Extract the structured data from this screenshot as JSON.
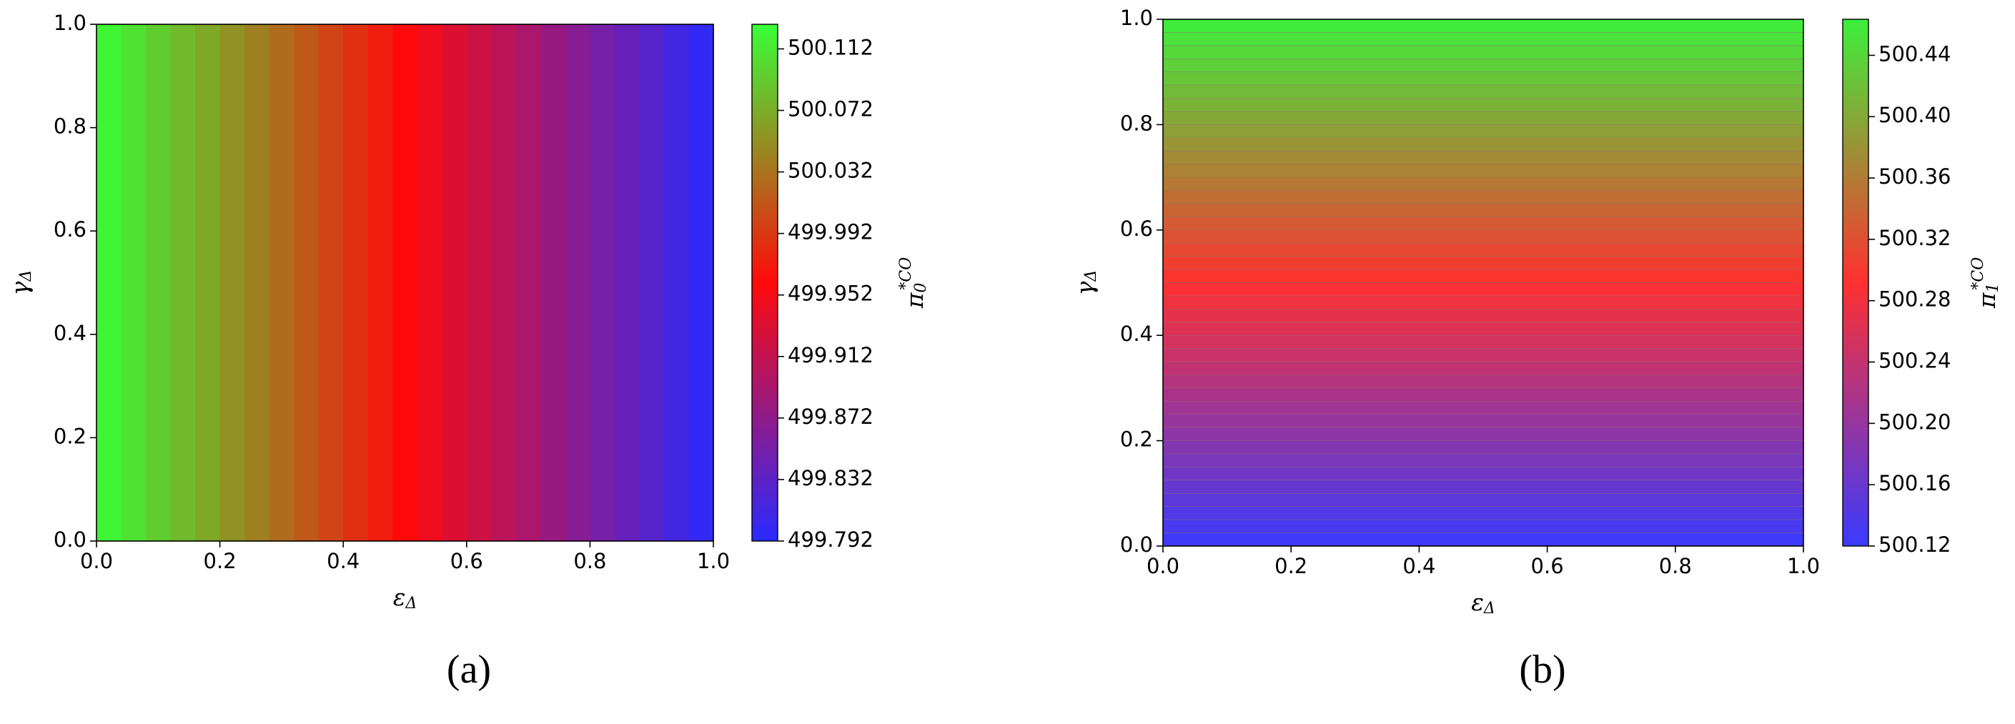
{
  "chart_data": [
    {
      "type": "heatmap",
      "xlabel": {
        "symbol": "ε",
        "subscript": "Δ"
      },
      "ylabel": {
        "symbol": "γ",
        "subscript": "Δ"
      },
      "colorbar_label": {
        "symbol": "π",
        "subscript": "0",
        "superscript": "*CO"
      },
      "caption": "(a)",
      "xlim": [
        0,
        1
      ],
      "ylim": [
        0,
        1
      ],
      "xticks": [
        {
          "value": 0,
          "label": "0.0"
        },
        {
          "value": 0.2,
          "label": "0.2"
        },
        {
          "value": 0.4,
          "label": "0.4"
        },
        {
          "value": 0.6,
          "label": "0.6"
        },
        {
          "value": 0.8,
          "label": "0.8"
        },
        {
          "value": 1,
          "label": "1.0"
        }
      ],
      "yticks": [
        {
          "value": 0,
          "label": "0.0"
        },
        {
          "value": 0.2,
          "label": "0.2"
        },
        {
          "value": 0.4,
          "label": "0.4"
        },
        {
          "value": 0.6,
          "label": "0.6"
        },
        {
          "value": 0.8,
          "label": "0.8"
        },
        {
          "value": 1,
          "label": "1.0"
        }
      ],
      "clim": [
        499.792,
        500.128
      ],
      "cticks": [
        499.792,
        499.832,
        499.872,
        499.912,
        499.952,
        499.992,
        500.032,
        500.072,
        500.112
      ],
      "colormap": [
        "#2a2aff",
        "#ff0a0a",
        "#38ff38"
      ],
      "x": [
        0.02,
        0.06,
        0.1,
        0.14,
        0.18,
        0.22,
        0.26,
        0.3,
        0.34,
        0.38,
        0.42,
        0.46,
        0.5,
        0.54,
        0.58,
        0.62,
        0.66,
        0.7,
        0.74,
        0.78,
        0.82,
        0.86,
        0.9,
        0.94,
        0.98
      ],
      "y": [
        0.5
      ],
      "z": [
        [
          500.121,
          500.108,
          500.094,
          500.081,
          500.068,
          500.054,
          500.041,
          500.027,
          500.014,
          500,
          499.987,
          499.973,
          499.96,
          499.947,
          499.933,
          499.92,
          499.906,
          499.893,
          499.879,
          499.866,
          499.852,
          499.839,
          499.826,
          499.812,
          499.799
        ]
      ]
    },
    {
      "type": "heatmap",
      "xlabel": {
        "symbol": "ε",
        "subscript": "Δ"
      },
      "ylabel": {
        "symbol": "γ",
        "subscript": "Δ"
      },
      "colorbar_label": {
        "symbol": "π",
        "subscript": "1",
        "superscript": "*CO"
      },
      "caption": "(b)",
      "xlim": [
        0,
        1
      ],
      "ylim": [
        0,
        1
      ],
      "xticks": [
        {
          "value": 0,
          "label": "0.0"
        },
        {
          "value": 0.2,
          "label": "0.2"
        },
        {
          "value": 0.4,
          "label": "0.4"
        },
        {
          "value": 0.6,
          "label": "0.6"
        },
        {
          "value": 0.8,
          "label": "0.8"
        },
        {
          "value": 1,
          "label": "1.0"
        }
      ],
      "yticks": [
        {
          "value": 0,
          "label": "0.0"
        },
        {
          "value": 0.2,
          "label": "0.2"
        },
        {
          "value": 0.4,
          "label": "0.4"
        },
        {
          "value": 0.6,
          "label": "0.6"
        },
        {
          "value": 0.8,
          "label": "0.8"
        },
        {
          "value": 1,
          "label": "1.0"
        }
      ],
      "clim": [
        500.12,
        500.4635
      ],
      "cticks": [
        500.12,
        500.16,
        {
          "value": 500.2,
          "label": "500.20"
        },
        500.24,
        500.28,
        500.32,
        500.36,
        {
          "value": 500.4,
          "label": "500.40"
        },
        500.44
      ],
      "colormap": [
        "#3a3aff",
        "#ff3030",
        "#3cf03c"
      ],
      "cell_edge_color": "#8a6a6a",
      "x": [
        0.5
      ],
      "y": [
        0.0125,
        0.0375,
        0.0625,
        0.0875,
        0.1125,
        0.1375,
        0.1625,
        0.1875,
        0.2125,
        0.2375,
        0.2625,
        0.2875,
        0.3125,
        0.3375,
        0.3625,
        0.3875,
        0.4125,
        0.4375,
        0.4625,
        0.4875,
        0.5125,
        0.5375,
        0.5625,
        0.5875,
        0.6125,
        0.6375,
        0.6625,
        0.6875,
        0.7125,
        0.7375,
        0.7625,
        0.7875,
        0.8125,
        0.8375,
        0.8625,
        0.8875,
        0.9125,
        0.9375,
        0.9625,
        0.9875
      ],
      "z": [
        [
          500.124
        ],
        [
          500.133
        ],
        [
          500.141
        ],
        [
          500.15
        ],
        [
          500.159
        ],
        [
          500.167
        ],
        [
          500.176
        ],
        [
          500.184
        ],
        [
          500.193
        ],
        [
          500.202
        ],
        [
          500.21
        ],
        [
          500.219
        ],
        [
          500.227
        ],
        [
          500.236
        ],
        [
          500.245
        ],
        [
          500.253
        ],
        [
          500.262
        ],
        [
          500.27
        ],
        [
          500.279
        ],
        [
          500.287
        ],
        [
          500.296
        ],
        [
          500.305
        ],
        [
          500.313
        ],
        [
          500.322
        ],
        [
          500.33
        ],
        [
          500.339
        ],
        [
          500.348
        ],
        [
          500.356
        ],
        [
          500.365
        ],
        [
          500.373
        ],
        [
          500.382
        ],
        [
          500.391
        ],
        [
          500.399
        ],
        [
          500.408
        ],
        [
          500.416
        ],
        [
          500.425
        ],
        [
          500.434
        ],
        [
          500.442
        ],
        [
          500.451
        ],
        [
          500.459
        ]
      ]
    }
  ]
}
